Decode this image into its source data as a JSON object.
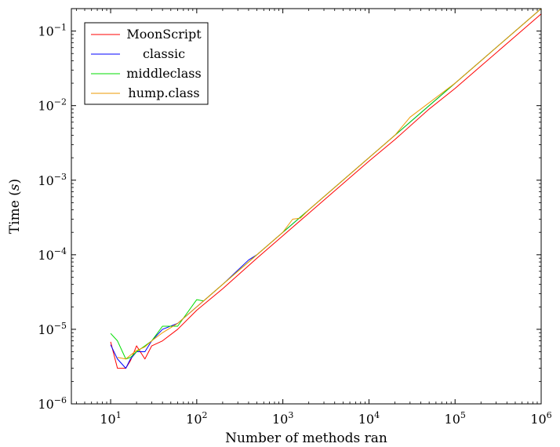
{
  "chart_data": {
    "type": "line",
    "title": "",
    "xlabel": "Number of methods ran",
    "ylabel": "Time (s)",
    "x_scale": "log",
    "y_scale": "log",
    "xlim": [
      3.5,
      1000000
    ],
    "ylim": [
      1e-06,
      0.2
    ],
    "x_ticks": [
      10,
      100,
      1000,
      10000,
      100000,
      1000000
    ],
    "y_ticks": [
      1e-06,
      1e-05,
      0.0001,
      0.001,
      0.01,
      0.1
    ],
    "grid": false,
    "legend_position": "top-left",
    "series": [
      {
        "name": "MoonScript",
        "color": "#ff0000",
        "x": [
          10,
          12,
          15,
          17,
          20,
          25,
          30,
          40,
          60,
          100,
          200,
          500,
          1000,
          2000,
          5000,
          10000,
          20000,
          50000,
          100000,
          200000,
          500000,
          1000000
        ],
        "y": [
          6.8e-06,
          3e-06,
          3e-06,
          3.8e-06,
          6e-06,
          4e-06,
          6e-06,
          7e-06,
          1e-05,
          1.8e-05,
          3.5e-05,
          9e-05,
          0.00018,
          0.00036,
          0.0009,
          0.0018,
          0.0035,
          0.009,
          0.017,
          0.034,
          0.085,
          0.17
        ]
      },
      {
        "name": "classic",
        "color": "#0000ff",
        "x": [
          10,
          12,
          15,
          17,
          20,
          25,
          30,
          40,
          60,
          100,
          200,
          400,
          500,
          1000,
          2000,
          5000,
          10000,
          20000,
          40000,
          100000,
          200000,
          500000,
          1000000
        ],
        "y": [
          6.2e-06,
          4e-06,
          3e-06,
          4e-06,
          5e-06,
          5e-06,
          7e-06,
          1e-05,
          1.2e-05,
          2e-05,
          4e-05,
          8.5e-05,
          0.0001,
          0.0002,
          0.0004,
          0.001,
          0.002,
          0.004,
          0.008,
          0.02,
          0.04,
          0.1,
          0.2
        ]
      },
      {
        "name": "middleclass",
        "color": "#00dd00",
        "x": [
          10,
          12,
          15,
          17,
          20,
          25,
          30,
          40,
          60,
          100,
          120,
          200,
          500,
          1000,
          2000,
          5000,
          10000,
          20000,
          30000,
          100000,
          200000,
          500000,
          1000000
        ],
        "y": [
          8.8e-06,
          7e-06,
          4e-06,
          4.2e-06,
          5e-06,
          6e-06,
          7e-06,
          1.1e-05,
          1.1e-05,
          2.5e-05,
          2.4e-05,
          4e-05,
          0.0001,
          0.0002,
          0.0004,
          0.001,
          0.002,
          0.004,
          0.006,
          0.02,
          0.04,
          0.1,
          0.2
        ]
      },
      {
        "name": "hump.class",
        "color": "#ee9900",
        "x": [
          12,
          15,
          17,
          20,
          25,
          30,
          40,
          60,
          100,
          200,
          500,
          1000,
          1300,
          1600,
          2000,
          5000,
          10000,
          20000,
          30000,
          100000,
          200000,
          500000,
          1000000
        ],
        "y": [
          4.2e-06,
          4e-06,
          4.5e-06,
          5.2e-06,
          5.8e-06,
          7e-06,
          9e-06,
          1.2e-05,
          2e-05,
          4e-05,
          0.0001,
          0.0002,
          0.0003,
          0.00031,
          0.0004,
          0.001,
          0.002,
          0.004,
          0.007,
          0.02,
          0.04,
          0.1,
          0.2
        ]
      }
    ]
  }
}
